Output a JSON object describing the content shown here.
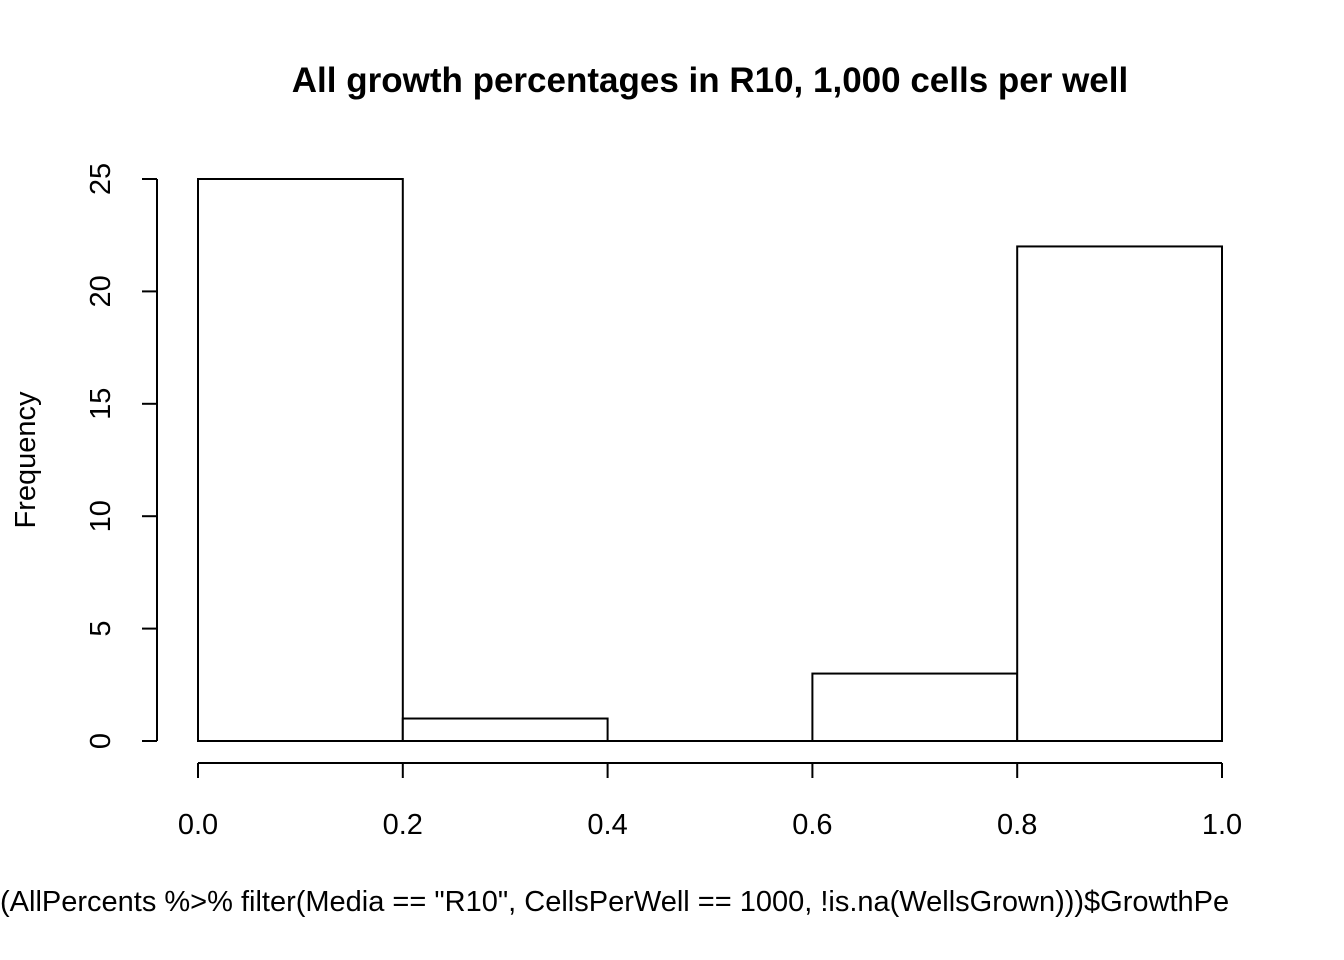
{
  "chart_data": {
    "type": "bar",
    "title": "All growth percentages in R10, 1,000 cells per well",
    "xlabel": "(AllPercents %>% filter(Media == \"R10\", CellsPerWell == 1000, !is.na(WellsGrown)))$GrowthPe",
    "ylabel": "Frequency",
    "bins": [
      {
        "from": 0.0,
        "to": 0.2,
        "count": 25
      },
      {
        "from": 0.2,
        "to": 0.4,
        "count": 1
      },
      {
        "from": 0.4,
        "to": 0.6,
        "count": 0
      },
      {
        "from": 0.6,
        "to": 0.8,
        "count": 3
      },
      {
        "from": 0.8,
        "to": 1.0,
        "count": 22
      }
    ],
    "xlim": [
      0,
      1
    ],
    "ylim": [
      0,
      25
    ],
    "xticks": [
      "0.0",
      "0.2",
      "0.4",
      "0.6",
      "0.8",
      "1.0"
    ],
    "yticks": [
      "0",
      "5",
      "10",
      "15",
      "20",
      "25"
    ],
    "grid": false,
    "legend": "none"
  }
}
